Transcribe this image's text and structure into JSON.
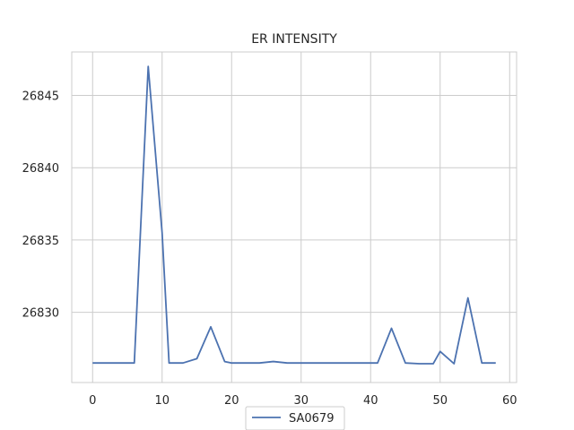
{
  "chart_data": {
    "type": "line",
    "title": "ER INTENSITY",
    "xlabel": "",
    "ylabel": "",
    "xlim": [
      -3,
      61
    ],
    "ylim": [
      26825.15,
      26848.0
    ],
    "xticks": [
      0,
      10,
      20,
      30,
      40,
      50,
      60
    ],
    "yticks": [
      26830,
      26835,
      26840,
      26845
    ],
    "grid": true,
    "legend_position": "bottom-center",
    "series": [
      {
        "name": "SA0679",
        "color": "#4c72b0",
        "x": [
          0,
          2,
          4,
          6,
          8,
          10,
          11,
          13,
          15,
          17,
          19,
          20,
          22,
          24,
          26,
          28,
          30,
          32,
          34,
          36,
          38,
          40,
          41,
          43,
          45,
          47,
          49,
          50,
          52,
          54,
          56,
          58
        ],
        "y": [
          26826.5,
          26826.5,
          26826.5,
          26826.5,
          26847.0,
          26835.5,
          26826.5,
          26826.5,
          26826.8,
          26829.0,
          26826.6,
          26826.5,
          26826.5,
          26826.5,
          26826.6,
          26826.5,
          26826.5,
          26826.5,
          26826.5,
          26826.5,
          26826.5,
          26826.5,
          26826.5,
          26828.9,
          26826.5,
          26826.45,
          26826.45,
          26827.3,
          26826.45,
          26831.0,
          26826.5,
          26826.5
        ]
      }
    ]
  }
}
